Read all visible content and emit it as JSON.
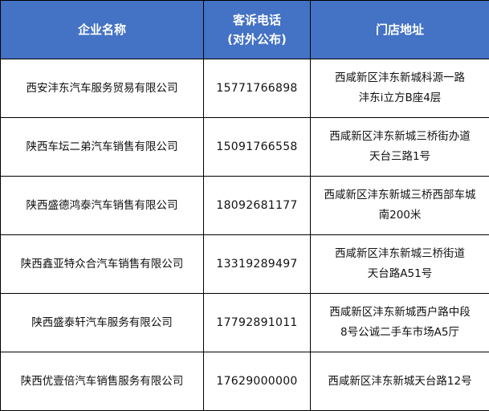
{
  "header_color": "#4472C4",
  "headers": {
    "company": "企业名称",
    "phone_line1": "客诉电话",
    "phone_line2": "(对外公布)",
    "address": "门店地址"
  },
  "rows": [
    {
      "company": "西安沣东汽车服务贸易有限公司",
      "phone": "15771766898",
      "address": [
        "西咸新区沣东新城科源一路",
        "沣东i立方B座4层"
      ]
    },
    {
      "company": "陕西车坛二弟汽车销售有限公司",
      "phone": "15091766558",
      "address": [
        "西咸新区沣东新城三桥街办道",
        "天台三路1号"
      ]
    },
    {
      "company": "陕西盛德鸿泰汽车销售有限公司",
      "phone": "18092681177",
      "address": [
        "西咸新区沣东新城三桥西部车城",
        "南200米"
      ]
    },
    {
      "company": "陕西鑫亚特众合汽车销售有限公司",
      "phone": "13319289497",
      "address": [
        "西咸新区沣东新城三桥街道",
        "天台路A51号"
      ]
    },
    {
      "company": "陕西盛泰轩汽车服务有限公司",
      "phone": "17792891011",
      "address": [
        "西咸新区沣东新城西户路中段",
        "8号公诚二手车市场A5厅"
      ]
    },
    {
      "company": "陕西优壹倍汽车销售服务有限公司",
      "phone": "17629000000",
      "address": [
        "西咸新区沣东新城天台路12号"
      ]
    }
  ]
}
